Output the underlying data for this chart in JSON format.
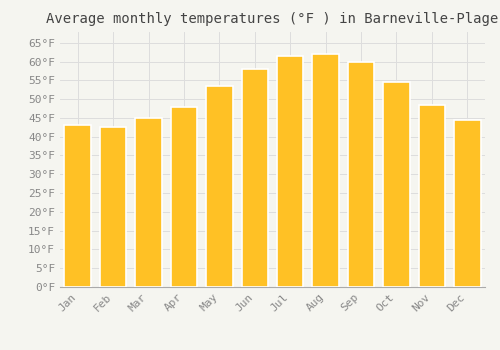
{
  "title": "Average monthly temperatures (°F ) in Barneville-Plage",
  "months": [
    "Jan",
    "Feb",
    "Mar",
    "Apr",
    "May",
    "Jun",
    "Jul",
    "Aug",
    "Sep",
    "Oct",
    "Nov",
    "Dec"
  ],
  "values": [
    43,
    42.5,
    45,
    48,
    53.5,
    58,
    61.5,
    62,
    60,
    54.5,
    48.5,
    44.5
  ],
  "bar_color": "#FFC125",
  "bar_edge_color": "#FFFFFF",
  "background_color": "#F5F5F0",
  "plot_bg_color": "#F5F5F0",
  "grid_color": "#DDDDDD",
  "ylim": [
    0,
    68
  ],
  "yticks": [
    0,
    5,
    10,
    15,
    20,
    25,
    30,
    35,
    40,
    45,
    50,
    55,
    60,
    65
  ],
  "ytick_labels": [
    "0°F",
    "5°F",
    "10°F",
    "15°F",
    "20°F",
    "25°F",
    "30°F",
    "35°F",
    "40°F",
    "45°F",
    "50°F",
    "55°F",
    "60°F",
    "65°F"
  ],
  "title_fontsize": 10,
  "tick_fontsize": 8,
  "tick_color": "#888888",
  "title_color": "#444444",
  "font_family": "monospace",
  "bar_width": 0.75
}
